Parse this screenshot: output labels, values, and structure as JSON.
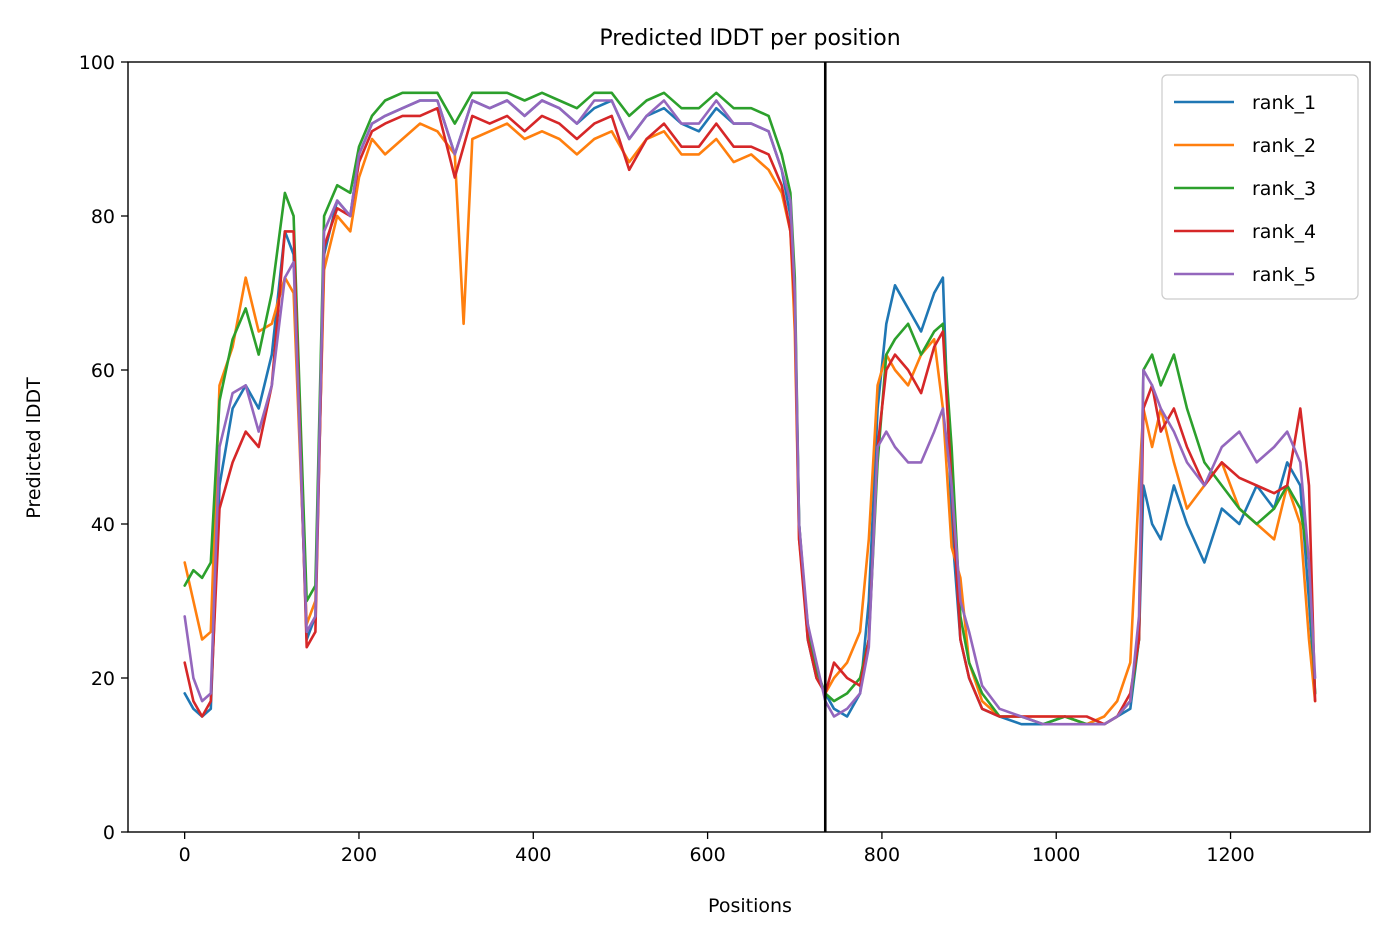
{
  "chart_data": {
    "type": "line",
    "title": "Predicted lDDT per position",
    "xlabel": "Positions",
    "ylabel": "Predicted lDDT",
    "xlim": [
      -65,
      1360
    ],
    "ylim": [
      0,
      100
    ],
    "xticks": [
      0,
      200,
      400,
      600,
      800,
      1000,
      1200
    ],
    "yticks": [
      0,
      20,
      40,
      60,
      80,
      100
    ],
    "grid": false,
    "legend_position": "upper-right",
    "vline": {
      "x": 735,
      "color": "#000000"
    },
    "series": [
      {
        "name": "rank_1",
        "color": "#1f77b4",
        "x": [
          0,
          10,
          20,
          30,
          40,
          55,
          70,
          85,
          100,
          115,
          125,
          140,
          150,
          160,
          175,
          190,
          200,
          215,
          230,
          250,
          270,
          290,
          310,
          330,
          350,
          370,
          390,
          410,
          430,
          450,
          470,
          490,
          510,
          530,
          550,
          570,
          590,
          610,
          630,
          650,
          670,
          685,
          695,
          700,
          705,
          715,
          725,
          735,
          745,
          760,
          775,
          785,
          795,
          805,
          815,
          830,
          845,
          860,
          870,
          880,
          890,
          900,
          915,
          935,
          960,
          985,
          1010,
          1035,
          1055,
          1070,
          1085,
          1095,
          1100,
          1110,
          1120,
          1135,
          1150,
          1170,
          1190,
          1210,
          1230,
          1250,
          1265,
          1280,
          1290,
          1297
        ],
        "y": [
          18,
          16,
          15,
          16,
          45,
          55,
          58,
          55,
          62,
          78,
          75,
          25,
          28,
          75,
          82,
          80,
          88,
          92,
          93,
          94,
          95,
          95,
          88,
          95,
          94,
          95,
          93,
          95,
          94,
          92,
          94,
          95,
          90,
          93,
          94,
          92,
          91,
          94,
          92,
          92,
          91,
          86,
          80,
          68,
          40,
          25,
          20,
          18,
          16,
          15,
          18,
          30,
          55,
          66,
          71,
          68,
          65,
          70,
          72,
          40,
          25,
          20,
          16,
          15,
          14,
          14,
          15,
          14,
          14,
          15,
          16,
          25,
          45,
          40,
          38,
          45,
          40,
          35,
          42,
          40,
          45,
          42,
          48,
          45,
          30,
          18
        ]
      },
      {
        "name": "rank_2",
        "color": "#ff7f0e",
        "x": [
          0,
          10,
          20,
          30,
          40,
          55,
          70,
          85,
          100,
          115,
          125,
          140,
          150,
          160,
          175,
          190,
          200,
          215,
          230,
          250,
          270,
          290,
          310,
          320,
          330,
          350,
          370,
          390,
          410,
          430,
          450,
          470,
          490,
          510,
          530,
          550,
          570,
          590,
          610,
          630,
          650,
          670,
          685,
          695,
          700,
          705,
          715,
          725,
          735,
          745,
          760,
          775,
          785,
          795,
          805,
          815,
          830,
          845,
          860,
          870,
          880,
          890,
          900,
          915,
          935,
          960,
          985,
          1010,
          1035,
          1055,
          1070,
          1085,
          1095,
          1100,
          1110,
          1120,
          1135,
          1150,
          1170,
          1190,
          1210,
          1230,
          1250,
          1265,
          1280,
          1290,
          1297
        ],
        "y": [
          35,
          30,
          25,
          26,
          58,
          63,
          72,
          65,
          66,
          72,
          70,
          27,
          30,
          73,
          80,
          78,
          85,
          90,
          88,
          90,
          92,
          91,
          88,
          66,
          90,
          91,
          92,
          90,
          91,
          90,
          88,
          90,
          91,
          87,
          90,
          91,
          88,
          88,
          90,
          87,
          88,
          86,
          83,
          78,
          65,
          38,
          27,
          20,
          18,
          20,
          22,
          26,
          38,
          58,
          62,
          60,
          58,
          62,
          64,
          55,
          37,
          33,
          22,
          17,
          15,
          15,
          15,
          15,
          14,
          15,
          17,
          22,
          45,
          55,
          50,
          55,
          48,
          42,
          45,
          48,
          42,
          40,
          38,
          45,
          40,
          25,
          17
        ]
      },
      {
        "name": "rank_3",
        "color": "#2ca02c",
        "x": [
          0,
          10,
          20,
          30,
          40,
          55,
          70,
          85,
          100,
          115,
          125,
          140,
          150,
          160,
          175,
          190,
          200,
          215,
          230,
          250,
          270,
          290,
          310,
          330,
          350,
          370,
          390,
          410,
          430,
          450,
          470,
          490,
          510,
          530,
          550,
          570,
          590,
          610,
          630,
          650,
          670,
          685,
          695,
          700,
          705,
          715,
          725,
          735,
          745,
          760,
          775,
          785,
          795,
          805,
          815,
          830,
          845,
          860,
          870,
          880,
          890,
          900,
          915,
          935,
          960,
          985,
          1010,
          1035,
          1055,
          1070,
          1085,
          1095,
          1100,
          1110,
          1120,
          1135,
          1150,
          1170,
          1190,
          1210,
          1230,
          1250,
          1265,
          1280,
          1290,
          1297
        ],
        "y": [
          32,
          34,
          33,
          35,
          56,
          64,
          68,
          62,
          70,
          83,
          80,
          30,
          32,
          80,
          84,
          83,
          89,
          93,
          95,
          96,
          96,
          96,
          92,
          96,
          96,
          96,
          95,
          96,
          95,
          94,
          96,
          96,
          93,
          95,
          96,
          94,
          94,
          96,
          94,
          94,
          93,
          88,
          83,
          72,
          40,
          26,
          21,
          18,
          17,
          18,
          20,
          25,
          48,
          62,
          64,
          66,
          62,
          65,
          66,
          50,
          28,
          22,
          18,
          15,
          15,
          14,
          15,
          14,
          14,
          15,
          17,
          25,
          60,
          62,
          58,
          62,
          55,
          48,
          45,
          42,
          40,
          42,
          45,
          42,
          35,
          18
        ]
      },
      {
        "name": "rank_4",
        "color": "#d62728",
        "x": [
          0,
          10,
          20,
          30,
          40,
          55,
          70,
          85,
          100,
          115,
          125,
          140,
          150,
          160,
          175,
          190,
          200,
          215,
          230,
          250,
          270,
          290,
          310,
          330,
          350,
          370,
          390,
          410,
          430,
          450,
          470,
          490,
          510,
          530,
          550,
          570,
          590,
          610,
          630,
          650,
          670,
          685,
          695,
          700,
          705,
          715,
          725,
          735,
          745,
          760,
          775,
          785,
          795,
          805,
          815,
          830,
          845,
          860,
          870,
          880,
          890,
          900,
          915,
          935,
          960,
          985,
          1010,
          1035,
          1055,
          1070,
          1085,
          1095,
          1100,
          1110,
          1120,
          1135,
          1150,
          1170,
          1190,
          1210,
          1230,
          1250,
          1265,
          1280,
          1290,
          1297
        ],
        "y": [
          22,
          17,
          15,
          17,
          42,
          48,
          52,
          50,
          58,
          78,
          78,
          24,
          26,
          76,
          81,
          80,
          87,
          91,
          92,
          93,
          93,
          94,
          85,
          93,
          92,
          93,
          91,
          93,
          92,
          90,
          92,
          93,
          86,
          90,
          92,
          89,
          89,
          92,
          89,
          89,
          88,
          84,
          78,
          68,
          38,
          25,
          20,
          18,
          22,
          20,
          19,
          25,
          50,
          60,
          62,
          60,
          57,
          63,
          65,
          45,
          25,
          20,
          16,
          15,
          15,
          15,
          15,
          15,
          14,
          15,
          18,
          25,
          55,
          58,
          52,
          55,
          50,
          45,
          48,
          46,
          45,
          44,
          45,
          55,
          45,
          17
        ]
      },
      {
        "name": "rank_5",
        "color": "#9467bd",
        "x": [
          0,
          10,
          20,
          30,
          40,
          55,
          70,
          85,
          100,
          115,
          125,
          140,
          150,
          160,
          175,
          190,
          200,
          215,
          230,
          250,
          270,
          290,
          310,
          330,
          350,
          370,
          390,
          410,
          430,
          450,
          470,
          490,
          510,
          530,
          550,
          570,
          590,
          610,
          630,
          650,
          670,
          685,
          695,
          700,
          705,
          715,
          725,
          735,
          745,
          760,
          775,
          785,
          795,
          805,
          815,
          830,
          845,
          860,
          870,
          880,
          890,
          900,
          915,
          935,
          960,
          985,
          1010,
          1035,
          1055,
          1070,
          1085,
          1095,
          1100,
          1110,
          1120,
          1135,
          1150,
          1170,
          1190,
          1210,
          1230,
          1250,
          1265,
          1280,
          1290,
          1297
        ],
        "y": [
          28,
          20,
          17,
          18,
          50,
          57,
          58,
          52,
          58,
          72,
          74,
          26,
          28,
          78,
          82,
          80,
          88,
          92,
          93,
          94,
          95,
          95,
          88,
          95,
          94,
          95,
          93,
          95,
          94,
          92,
          95,
          95,
          90,
          93,
          95,
          92,
          92,
          95,
          92,
          92,
          91,
          86,
          82,
          70,
          40,
          27,
          22,
          17,
          15,
          16,
          18,
          24,
          50,
          52,
          50,
          48,
          48,
          52,
          55,
          45,
          30,
          26,
          19,
          16,
          15,
          14,
          14,
          14,
          14,
          15,
          17,
          28,
          60,
          58,
          55,
          52,
          48,
          45,
          50,
          52,
          48,
          50,
          52,
          48,
          35,
          20
        ]
      }
    ]
  }
}
